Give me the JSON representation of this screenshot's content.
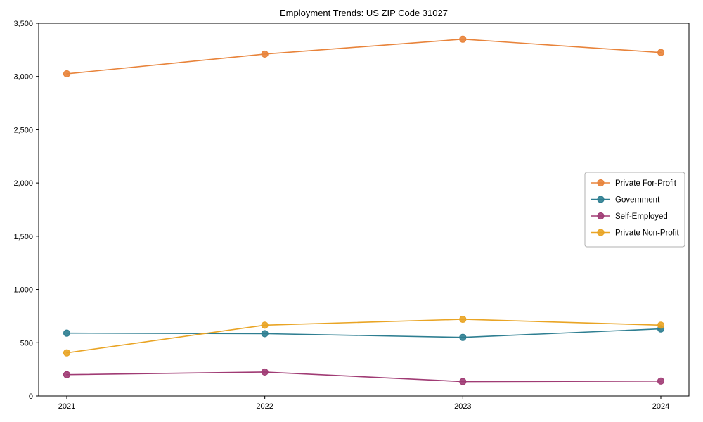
{
  "figure": {
    "title": "Employment Trends: US ZIP Code 31027"
  },
  "chart_data": {
    "type": "line",
    "title": "Employment Trends: US ZIP Code 31027",
    "xlabel": "",
    "ylabel": "",
    "x": [
      2021,
      2022,
      2023,
      2024
    ],
    "xtick_labels": [
      "2021",
      "2022",
      "2023",
      "2024"
    ],
    "ylim": [
      0,
      3500
    ],
    "yticks": [
      0,
      500,
      1000,
      1500,
      2000,
      2500,
      3000,
      3500
    ],
    "ytick_labels": [
      "0",
      "500",
      "1,000",
      "1,500",
      "2,000",
      "2,500",
      "3,000",
      "3,500"
    ],
    "grid": false,
    "legend_position": "center right",
    "series": [
      {
        "name": "Private For-Profit",
        "color": "#e8833a",
        "values": [
          3025,
          3210,
          3350,
          3225
        ]
      },
      {
        "name": "Government",
        "color": "#2e7e91",
        "values": [
          590,
          585,
          550,
          630
        ]
      },
      {
        "name": "Self-Employed",
        "color": "#a03b74",
        "values": [
          200,
          225,
          135,
          140
        ]
      },
      {
        "name": "Private Non-Profit",
        "color": "#e9a424",
        "values": [
          405,
          665,
          720,
          665
        ]
      }
    ],
    "style": {
      "axis_color": "#000000",
      "tick_label_color": "#000000",
      "legend_border_color": "#b0b0b0",
      "background": "#ffffff"
    }
  }
}
